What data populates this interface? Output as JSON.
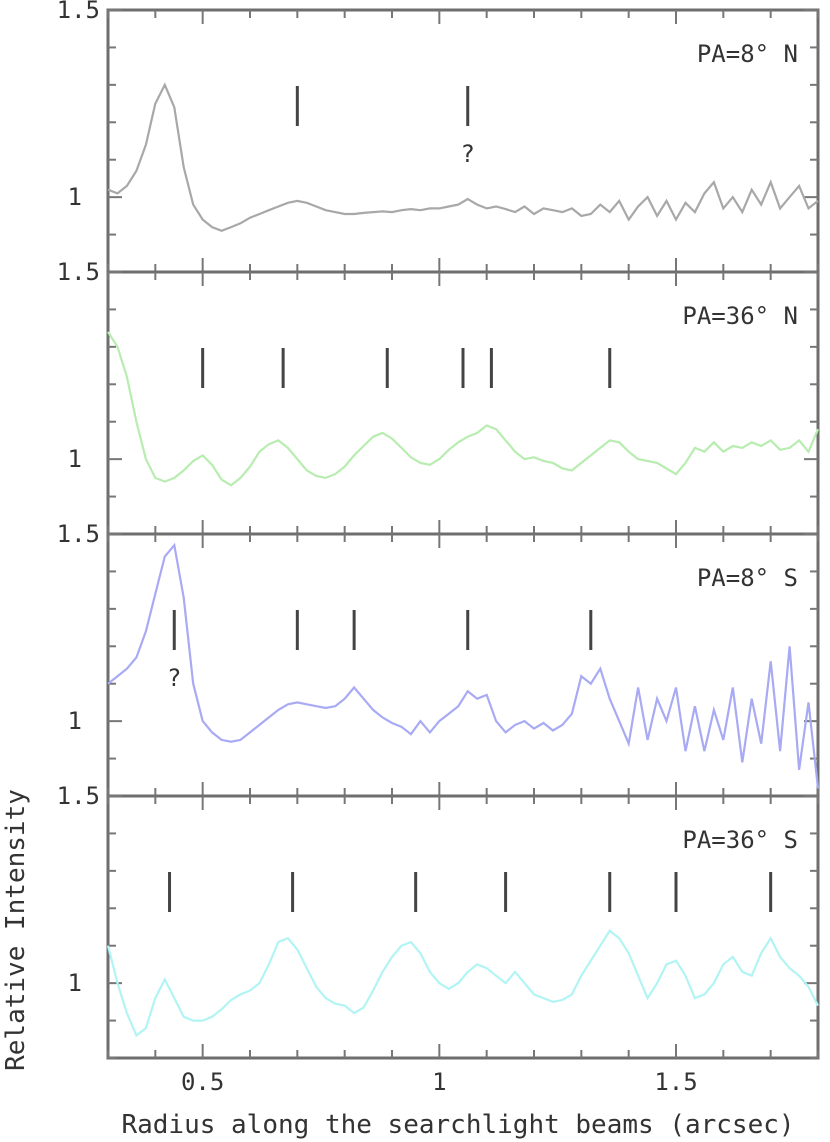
{
  "chart_data": {
    "type": "line",
    "layout": "4 vertically stacked panels sharing one x axis",
    "xlabel": "Radius along the searchlight beams (arcsec)",
    "ylabel": "Relative Intensity",
    "xlim": [
      0.3,
      1.8
    ],
    "x_ticks": [
      0.5,
      1,
      1.5
    ],
    "x_tick_labels": [
      "0.5",
      "1",
      "1.5"
    ],
    "y_tick_labels_per_panel": [
      "1.5",
      "1"
    ],
    "ylim": [
      0.8,
      1.5
    ],
    "grid": false,
    "panels": [
      {
        "label": "PA=8° N",
        "color": "#a8a8a8",
        "markers": [
          0.7,
          1.06
        ],
        "marker_notes": [
          {
            "x": 1.06,
            "text": "?",
            "position": "below"
          }
        ],
        "series": {
          "x": [
            0.3,
            0.32,
            0.34,
            0.36,
            0.38,
            0.4,
            0.42,
            0.44,
            0.46,
            0.48,
            0.5,
            0.52,
            0.54,
            0.56,
            0.58,
            0.6,
            0.62,
            0.64,
            0.66,
            0.68,
            0.7,
            0.72,
            0.74,
            0.76,
            0.78,
            0.8,
            0.82,
            0.84,
            0.86,
            0.88,
            0.9,
            0.92,
            0.94,
            0.96,
            0.98,
            1.0,
            1.02,
            1.04,
            1.06,
            1.08,
            1.1,
            1.12,
            1.14,
            1.16,
            1.18,
            1.2,
            1.22,
            1.24,
            1.26,
            1.28,
            1.3,
            1.32,
            1.34,
            1.36,
            1.38,
            1.4,
            1.42,
            1.44,
            1.46,
            1.48,
            1.5,
            1.52,
            1.54,
            1.56,
            1.58,
            1.6,
            1.62,
            1.64,
            1.66,
            1.68,
            1.7,
            1.72,
            1.74,
            1.76,
            1.78,
            1.8
          ],
          "y": [
            1.02,
            1.01,
            1.03,
            1.07,
            1.14,
            1.25,
            1.3,
            1.24,
            1.08,
            0.98,
            0.94,
            0.92,
            0.91,
            0.92,
            0.93,
            0.945,
            0.955,
            0.965,
            0.975,
            0.985,
            0.99,
            0.985,
            0.975,
            0.965,
            0.96,
            0.955,
            0.955,
            0.958,
            0.96,
            0.962,
            0.96,
            0.965,
            0.968,
            0.965,
            0.97,
            0.97,
            0.975,
            0.98,
            0.995,
            0.98,
            0.97,
            0.975,
            0.968,
            0.96,
            0.975,
            0.955,
            0.97,
            0.965,
            0.96,
            0.97,
            0.95,
            0.955,
            0.98,
            0.96,
            0.99,
            0.94,
            0.975,
            1.0,
            0.95,
            0.99,
            0.94,
            0.985,
            0.96,
            1.01,
            1.04,
            0.97,
            1.0,
            0.96,
            1.02,
            0.98,
            1.04,
            0.97,
            1.0,
            1.03,
            0.97,
            0.99
          ]
        }
      },
      {
        "label": "PA=36° N",
        "color": "#b8ecb0",
        "markers": [
          0.5,
          0.67,
          0.89,
          1.05,
          1.11,
          1.36
        ],
        "series": {
          "x": [
            0.3,
            0.32,
            0.34,
            0.36,
            0.38,
            0.4,
            0.42,
            0.44,
            0.46,
            0.48,
            0.5,
            0.52,
            0.54,
            0.56,
            0.58,
            0.6,
            0.62,
            0.64,
            0.66,
            0.68,
            0.7,
            0.72,
            0.74,
            0.76,
            0.78,
            0.8,
            0.82,
            0.84,
            0.86,
            0.88,
            0.9,
            0.92,
            0.94,
            0.96,
            0.98,
            1.0,
            1.02,
            1.04,
            1.06,
            1.08,
            1.1,
            1.12,
            1.14,
            1.16,
            1.18,
            1.2,
            1.22,
            1.24,
            1.26,
            1.28,
            1.3,
            1.32,
            1.34,
            1.36,
            1.38,
            1.4,
            1.42,
            1.44,
            1.46,
            1.48,
            1.5,
            1.52,
            1.54,
            1.56,
            1.58,
            1.6,
            1.62,
            1.64,
            1.66,
            1.68,
            1.7,
            1.72,
            1.74,
            1.76,
            1.78,
            1.8
          ],
          "y": [
            1.34,
            1.3,
            1.22,
            1.1,
            1.0,
            0.95,
            0.94,
            0.95,
            0.97,
            0.995,
            1.01,
            0.985,
            0.945,
            0.93,
            0.95,
            0.98,
            1.02,
            1.04,
            1.05,
            1.03,
            1.0,
            0.97,
            0.955,
            0.95,
            0.96,
            0.98,
            1.01,
            1.035,
            1.06,
            1.07,
            1.055,
            1.03,
            1.005,
            0.99,
            0.985,
            1.0,
            1.025,
            1.045,
            1.06,
            1.07,
            1.09,
            1.08,
            1.05,
            1.02,
            1.0,
            1.005,
            0.995,
            0.99,
            0.975,
            0.97,
            0.99,
            1.01,
            1.03,
            1.05,
            1.045,
            1.02,
            1.0,
            0.995,
            0.99,
            0.975,
            0.96,
            0.99,
            1.03,
            1.02,
            1.045,
            1.02,
            1.035,
            1.03,
            1.045,
            1.035,
            1.05,
            1.025,
            1.03,
            1.05,
            1.02,
            1.08
          ]
        }
      },
      {
        "label": "PA=8° S",
        "color": "#a8aaf4",
        "markers": [
          0.44,
          0.7,
          0.82,
          1.06,
          1.32
        ],
        "marker_notes": [
          {
            "x": 0.44,
            "text": "?",
            "position": "below"
          }
        ],
        "series": {
          "x": [
            0.3,
            0.32,
            0.34,
            0.36,
            0.38,
            0.4,
            0.42,
            0.44,
            0.46,
            0.48,
            0.5,
            0.52,
            0.54,
            0.56,
            0.58,
            0.6,
            0.62,
            0.64,
            0.66,
            0.68,
            0.7,
            0.72,
            0.74,
            0.76,
            0.78,
            0.8,
            0.82,
            0.84,
            0.86,
            0.88,
            0.9,
            0.92,
            0.94,
            0.96,
            0.98,
            1.0,
            1.02,
            1.04,
            1.06,
            1.08,
            1.1,
            1.12,
            1.14,
            1.16,
            1.18,
            1.2,
            1.22,
            1.24,
            1.26,
            1.28,
            1.3,
            1.32,
            1.34,
            1.36,
            1.38,
            1.4,
            1.42,
            1.44,
            1.46,
            1.48,
            1.5,
            1.52,
            1.54,
            1.56,
            1.58,
            1.6,
            1.62,
            1.64,
            1.66,
            1.68,
            1.7,
            1.72,
            1.74,
            1.76,
            1.78,
            1.8
          ],
          "y": [
            1.1,
            1.12,
            1.14,
            1.17,
            1.24,
            1.34,
            1.44,
            1.47,
            1.33,
            1.1,
            1.0,
            0.97,
            0.95,
            0.945,
            0.95,
            0.97,
            0.99,
            1.01,
            1.03,
            1.045,
            1.05,
            1.045,
            1.04,
            1.035,
            1.04,
            1.06,
            1.09,
            1.06,
            1.03,
            1.01,
            0.995,
            0.985,
            0.965,
            1.0,
            0.97,
            1.0,
            1.02,
            1.04,
            1.08,
            1.06,
            1.07,
            1.0,
            0.97,
            0.99,
            1.0,
            0.98,
            0.995,
            0.975,
            0.99,
            1.02,
            1.12,
            1.1,
            1.14,
            1.06,
            1.0,
            0.94,
            1.09,
            0.95,
            1.06,
            1.0,
            1.09,
            0.92,
            1.04,
            0.92,
            1.03,
            0.95,
            1.09,
            0.89,
            1.06,
            0.94,
            1.16,
            0.92,
            1.2,
            0.87,
            1.05,
            0.82
          ]
        }
      },
      {
        "label": "PA=36° S",
        "color": "#b2f4f4",
        "markers": [
          0.43,
          0.69,
          0.95,
          1.14,
          1.36,
          1.5,
          1.7
        ],
        "series": {
          "x": [
            0.3,
            0.32,
            0.34,
            0.36,
            0.38,
            0.4,
            0.42,
            0.44,
            0.46,
            0.48,
            0.5,
            0.52,
            0.54,
            0.56,
            0.58,
            0.6,
            0.62,
            0.64,
            0.66,
            0.68,
            0.7,
            0.72,
            0.74,
            0.76,
            0.78,
            0.8,
            0.82,
            0.84,
            0.86,
            0.88,
            0.9,
            0.92,
            0.94,
            0.96,
            0.98,
            1.0,
            1.02,
            1.04,
            1.06,
            1.08,
            1.1,
            1.12,
            1.14,
            1.16,
            1.18,
            1.2,
            1.22,
            1.24,
            1.26,
            1.28,
            1.3,
            1.32,
            1.34,
            1.36,
            1.38,
            1.4,
            1.42,
            1.44,
            1.46,
            1.48,
            1.5,
            1.52,
            1.54,
            1.56,
            1.58,
            1.6,
            1.62,
            1.64,
            1.66,
            1.68,
            1.7,
            1.72,
            1.74,
            1.76,
            1.78,
            1.8
          ],
          "y": [
            1.1,
            1.0,
            0.92,
            0.86,
            0.88,
            0.96,
            1.01,
            0.96,
            0.91,
            0.9,
            0.9,
            0.91,
            0.93,
            0.955,
            0.97,
            0.98,
            1.0,
            1.05,
            1.11,
            1.12,
            1.09,
            1.04,
            0.99,
            0.96,
            0.945,
            0.94,
            0.92,
            0.935,
            0.98,
            1.03,
            1.07,
            1.1,
            1.11,
            1.08,
            1.03,
            1.0,
            0.985,
            1.0,
            1.03,
            1.05,
            1.04,
            1.02,
            1.0,
            1.03,
            1.0,
            0.97,
            0.96,
            0.95,
            0.955,
            0.97,
            1.02,
            1.06,
            1.1,
            1.14,
            1.12,
            1.08,
            1.02,
            0.96,
            1.0,
            1.05,
            1.06,
            1.02,
            0.96,
            0.97,
            1.0,
            1.05,
            1.07,
            1.03,
            1.02,
            1.08,
            1.12,
            1.07,
            1.04,
            1.02,
            0.99,
            0.94
          ]
        }
      }
    ]
  }
}
